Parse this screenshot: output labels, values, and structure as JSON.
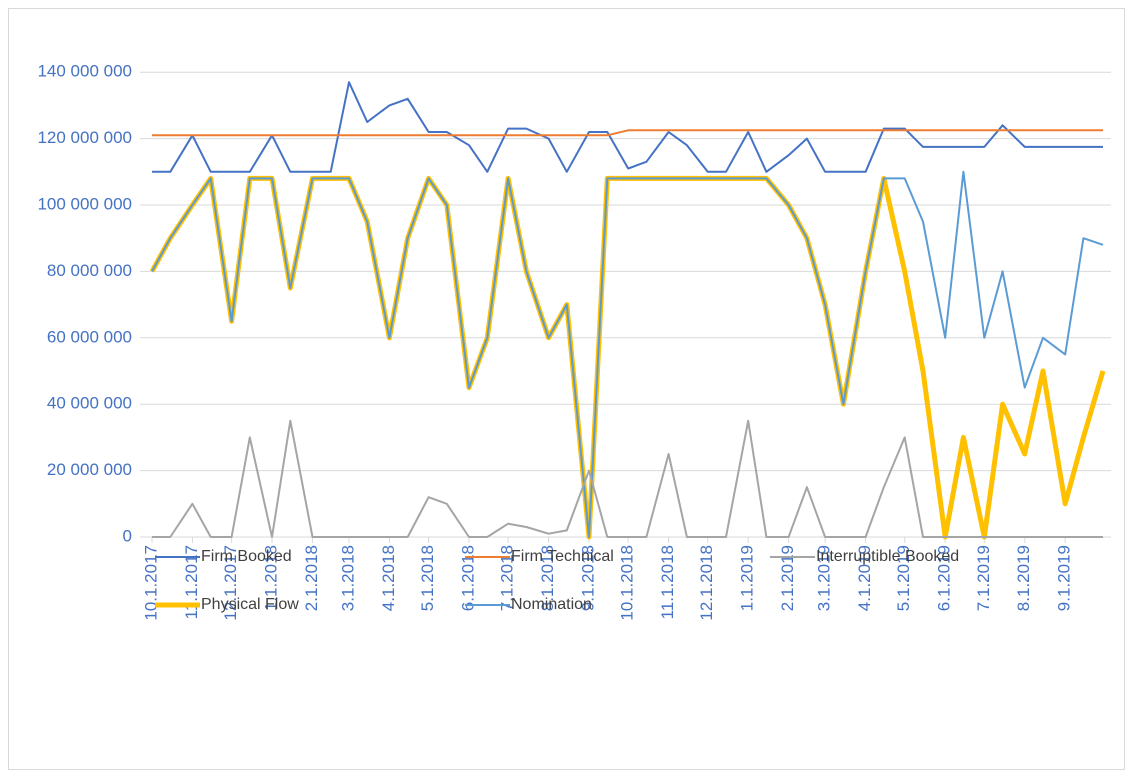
{
  "chart_data": {
    "type": "line",
    "x": [
      "10.1.2017",
      "10.15.2017",
      "11.1.2017",
      "11.15.2017",
      "12.1.2017",
      "12.15.2017",
      "1.1.2018",
      "1.15.2018",
      "2.1.2018",
      "2.15.2018",
      "3.1.2018",
      "3.15.2018",
      "4.1.2018",
      "4.15.2018",
      "5.1.2018",
      "5.15.2018",
      "6.1.2018",
      "6.15.2018",
      "7.1.2018",
      "7.15.2018",
      "8.1.2018",
      "8.15.2018",
      "9.1.2018",
      "9.15.2018",
      "10.1.2018",
      "10.15.2018",
      "11.1.2018",
      "11.15.2018",
      "12.1.2018",
      "12.15.2018",
      "1.1.2019",
      "1.15.2019",
      "2.1.2019",
      "2.15.2019",
      "3.1.2019",
      "3.15.2019",
      "4.1.2019",
      "4.15.2019",
      "5.1.2019",
      "5.15.2019",
      "6.1.2019",
      "6.15.2019",
      "7.1.2019",
      "7.15.2019",
      "8.1.2019",
      "8.15.2019",
      "9.1.2019",
      "9.15.2019",
      "9.30.2019"
    ],
    "xlim": [
      "10.1.2017",
      "9.30.2019"
    ],
    "xticks": [
      "10.1.2017",
      "11.1.2017",
      "12.1.2017",
      "1.1.2018",
      "2.1.2018",
      "3.1.2018",
      "4.1.2018",
      "5.1.2018",
      "6.1.2018",
      "7.1.2018",
      "8.1.2018",
      "9.1.2018",
      "10.1.2018",
      "11.1.2018",
      "12.1.2018",
      "1.1.2019",
      "2.1.2019",
      "3.1.2019",
      "4.1.2019",
      "5.1.2019",
      "6.1.2019",
      "7.1.2019",
      "8.1.2019",
      "9.1.2019"
    ],
    "ylim": [
      0,
      150000000
    ],
    "yticks": [
      0,
      {
        "value": 20000000,
        "label": "20 000 000"
      },
      {
        "value": 40000000,
        "label": "40 000 000"
      },
      {
        "value": 60000000,
        "label": "60 000 000"
      },
      {
        "value": 80000000,
        "label": "80 000 000"
      },
      {
        "value": 100000000,
        "label": "100 000 000"
      },
      {
        "value": 120000000,
        "label": "120 000 000"
      },
      {
        "value": 140000000,
        "label": "140 000 000"
      }
    ],
    "grid": true,
    "legend": "bottom",
    "series": [
      {
        "name": "Firm Booked",
        "color": "#4472c4",
        "width": 2,
        "values": [
          110000000,
          110000000,
          121000000,
          110000000,
          110000000,
          110000000,
          121000000,
          110000000,
          110000000,
          110000000,
          137000000,
          125000000,
          130000000,
          132000000,
          122000000,
          122000000,
          118000000,
          110000000,
          123000000,
          123000000,
          120000000,
          110000000,
          122000000,
          122000000,
          111000000,
          113000000,
          122000000,
          118000000,
          110000000,
          110000000,
          122000000,
          110000000,
          115000000,
          120000000,
          110000000,
          110000000,
          110000000,
          123000000,
          123000000,
          117500000,
          117500000,
          117500000,
          117500000,
          124000000,
          117500000,
          117500000,
          117500000,
          117500000,
          117500000
        ]
      },
      {
        "name": "Firm Technical",
        "color": "#ed7d31",
        "width": 2,
        "values": [
          121000000,
          121000000,
          121000000,
          121000000,
          121000000,
          121000000,
          121000000,
          121000000,
          121000000,
          121000000,
          121000000,
          121000000,
          121000000,
          121000000,
          121000000,
          121000000,
          121000000,
          121000000,
          121000000,
          121000000,
          121000000,
          121000000,
          121000000,
          121000000,
          122500000,
          122500000,
          122500000,
          122500000,
          122500000,
          122500000,
          122500000,
          122500000,
          122500000,
          122500000,
          122500000,
          122500000,
          122500000,
          122500000,
          122500000,
          122500000,
          122500000,
          122500000,
          122500000,
          122500000,
          122500000,
          122500000,
          122500000,
          122500000,
          122500000
        ]
      },
      {
        "name": "Interruptible Booked",
        "color": "#a5a5a5",
        "width": 2,
        "values": [
          0,
          0,
          10000000,
          0,
          0,
          30000000,
          0,
          35000000,
          0,
          0,
          0,
          0,
          0,
          0,
          12000000,
          10000000,
          0,
          0,
          4000000,
          3000000,
          1000000,
          2000000,
          20000000,
          0,
          0,
          0,
          25000000,
          0,
          0,
          0,
          35000000,
          0,
          0,
          15000000,
          0,
          0,
          0,
          15000000,
          30000000,
          0,
          0,
          0,
          0,
          0,
          0,
          0,
          0,
          0,
          0
        ]
      },
      {
        "name": "Physical Flow",
        "color": "#ffc000",
        "width": 5,
        "values": [
          80000000,
          90000000,
          100000000,
          108000000,
          65000000,
          108000000,
          108000000,
          75000000,
          108000000,
          108000000,
          108000000,
          95000000,
          60000000,
          90000000,
          108000000,
          100000000,
          45000000,
          60000000,
          108000000,
          80000000,
          60000000,
          70000000,
          0,
          108000000,
          108000000,
          108000000,
          108000000,
          108000000,
          108000000,
          108000000,
          108000000,
          108000000,
          100000000,
          90000000,
          70000000,
          40000000,
          80000000,
          108000000,
          80000000,
          50000000,
          0,
          30000000,
          0,
          40000000,
          25000000,
          50000000,
          10000000,
          30000000,
          50000000
        ]
      },
      {
        "name": "Nomination",
        "color": "#5b9bd5",
        "width": 2,
        "values": [
          80000000,
          90000000,
          100000000,
          108000000,
          65000000,
          108000000,
          108000000,
          75000000,
          108000000,
          108000000,
          108000000,
          95000000,
          60000000,
          90000000,
          108000000,
          100000000,
          45000000,
          60000000,
          108000000,
          80000000,
          60000000,
          70000000,
          0,
          108000000,
          108000000,
          108000000,
          108000000,
          108000000,
          108000000,
          108000000,
          108000000,
          108000000,
          100000000,
          90000000,
          70000000,
          40000000,
          80000000,
          108000000,
          108000000,
          95000000,
          60000000,
          110000000,
          60000000,
          80000000,
          45000000,
          60000000,
          55000000,
          90000000,
          88000000
        ]
      }
    ]
  }
}
